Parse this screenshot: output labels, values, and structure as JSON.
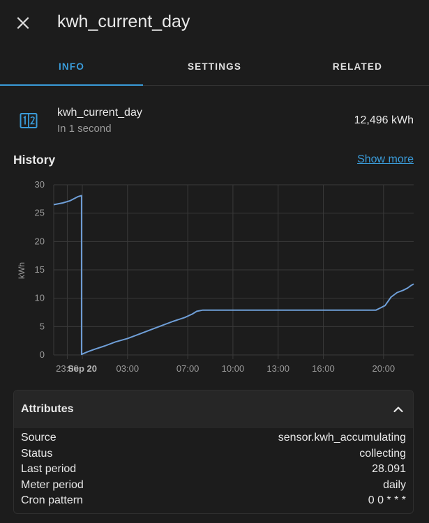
{
  "header": {
    "title": "kwh_current_day",
    "close_icon": "close-icon"
  },
  "tabs": [
    {
      "label": "INFO",
      "active": true
    },
    {
      "label": "SETTINGS",
      "active": false
    },
    {
      "label": "RELATED",
      "active": false
    }
  ],
  "entity": {
    "icon": "counter-icon",
    "name": "kwh_current_day",
    "secondary": "In 1 second",
    "value": "12,496 kWh"
  },
  "history": {
    "title": "History",
    "show_more": "Show more"
  },
  "colors": {
    "accent": "#3a9bd9",
    "line": "#6f9fd8",
    "background": "#1c1c1c"
  },
  "chart_data": {
    "type": "line",
    "ylabel": "kWh",
    "ylim": [
      0,
      30
    ],
    "yticks": [
      "0",
      "5",
      "10",
      "15",
      "20",
      "25",
      "30"
    ],
    "xtick_labels": [
      "23:00",
      "Sep 20",
      "03:00",
      "07:00",
      "10:00",
      "13:00",
      "16:00",
      "20:00"
    ],
    "xtick_hours": [
      -1,
      0,
      3,
      7,
      10,
      13,
      16,
      20
    ],
    "xlim_hours": [
      -1.9,
      22.0
    ],
    "grid": true,
    "series": [
      {
        "x_hours": [
          -1.9,
          -1.3,
          -0.8,
          -0.3,
          -0.05,
          -0.05,
          0.3,
          0.8,
          1.5,
          2.2,
          3.0,
          3.8,
          4.5,
          5.3,
          6.0,
          6.8,
          7.3,
          7.6,
          8.0,
          8.5,
          10.0,
          12.0,
          15.0,
          18.0,
          19.5,
          19.8,
          20.1,
          20.5,
          20.9,
          21.3,
          21.6,
          21.8,
          22.0
        ],
        "values": [
          26.5,
          26.8,
          27.2,
          27.9,
          28.1,
          0.1,
          0.5,
          1.0,
          1.6,
          2.3,
          2.9,
          3.7,
          4.4,
          5.2,
          5.9,
          6.6,
          7.2,
          7.7,
          7.9,
          7.9,
          7.9,
          7.9,
          7.9,
          7.9,
          7.9,
          8.3,
          8.7,
          10.2,
          11.0,
          11.4,
          11.8,
          12.2,
          12.5
        ]
      }
    ]
  },
  "attributes": {
    "title": "Attributes",
    "toggle_icon": "chevron-up-icon",
    "rows": [
      {
        "label": "Source",
        "value": "sensor.kwh_accumulating"
      },
      {
        "label": "Status",
        "value": "collecting"
      },
      {
        "label": "Last period",
        "value": "28.091"
      },
      {
        "label": "Meter period",
        "value": "daily"
      },
      {
        "label": "Cron pattern",
        "value": "0 0 * * *"
      }
    ]
  }
}
